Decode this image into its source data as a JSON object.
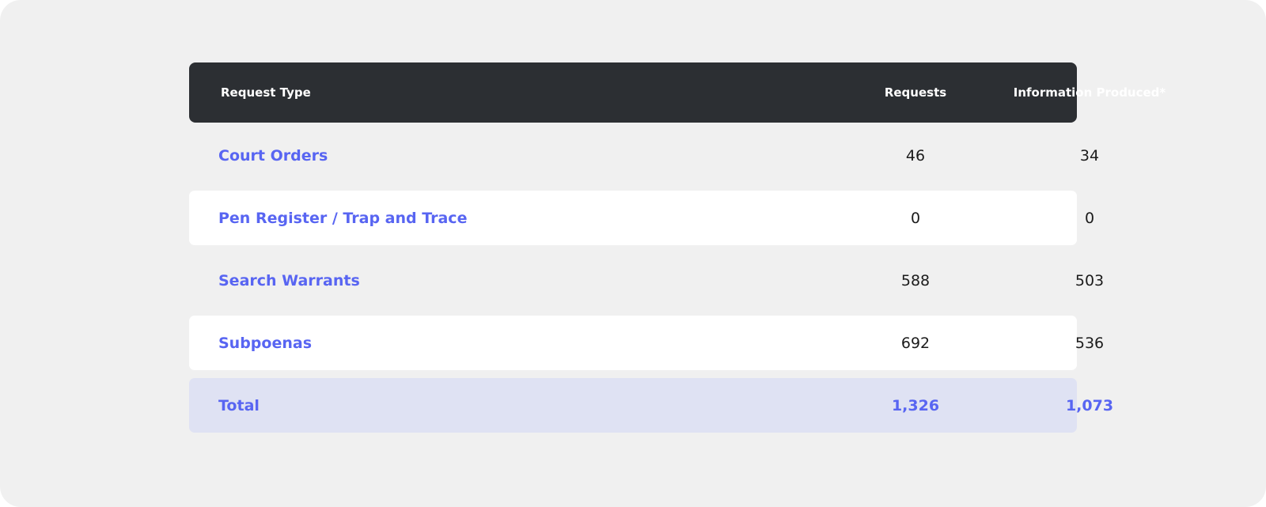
{
  "header": {
    "col_type": "Request Type",
    "col_requests": "Requests",
    "col_info": "Information Produced*"
  },
  "rows": [
    {
      "type": "Court Orders",
      "requests": "46",
      "info": "34"
    },
    {
      "type": "Pen Register / Trap and Trace",
      "requests": "0",
      "info": "0"
    },
    {
      "type": "Search Warrants",
      "requests": "588",
      "info": "503"
    },
    {
      "type": "Subpoenas",
      "requests": "692",
      "info": "536"
    }
  ],
  "total": {
    "type": "Total",
    "requests": "1,326",
    "info": "1,073"
  },
  "colors": {
    "accent": "#5865f2",
    "header_bg": "#2c2f33",
    "total_bg": "#dfe2f3",
    "page_bg": "#f0f0f0"
  }
}
